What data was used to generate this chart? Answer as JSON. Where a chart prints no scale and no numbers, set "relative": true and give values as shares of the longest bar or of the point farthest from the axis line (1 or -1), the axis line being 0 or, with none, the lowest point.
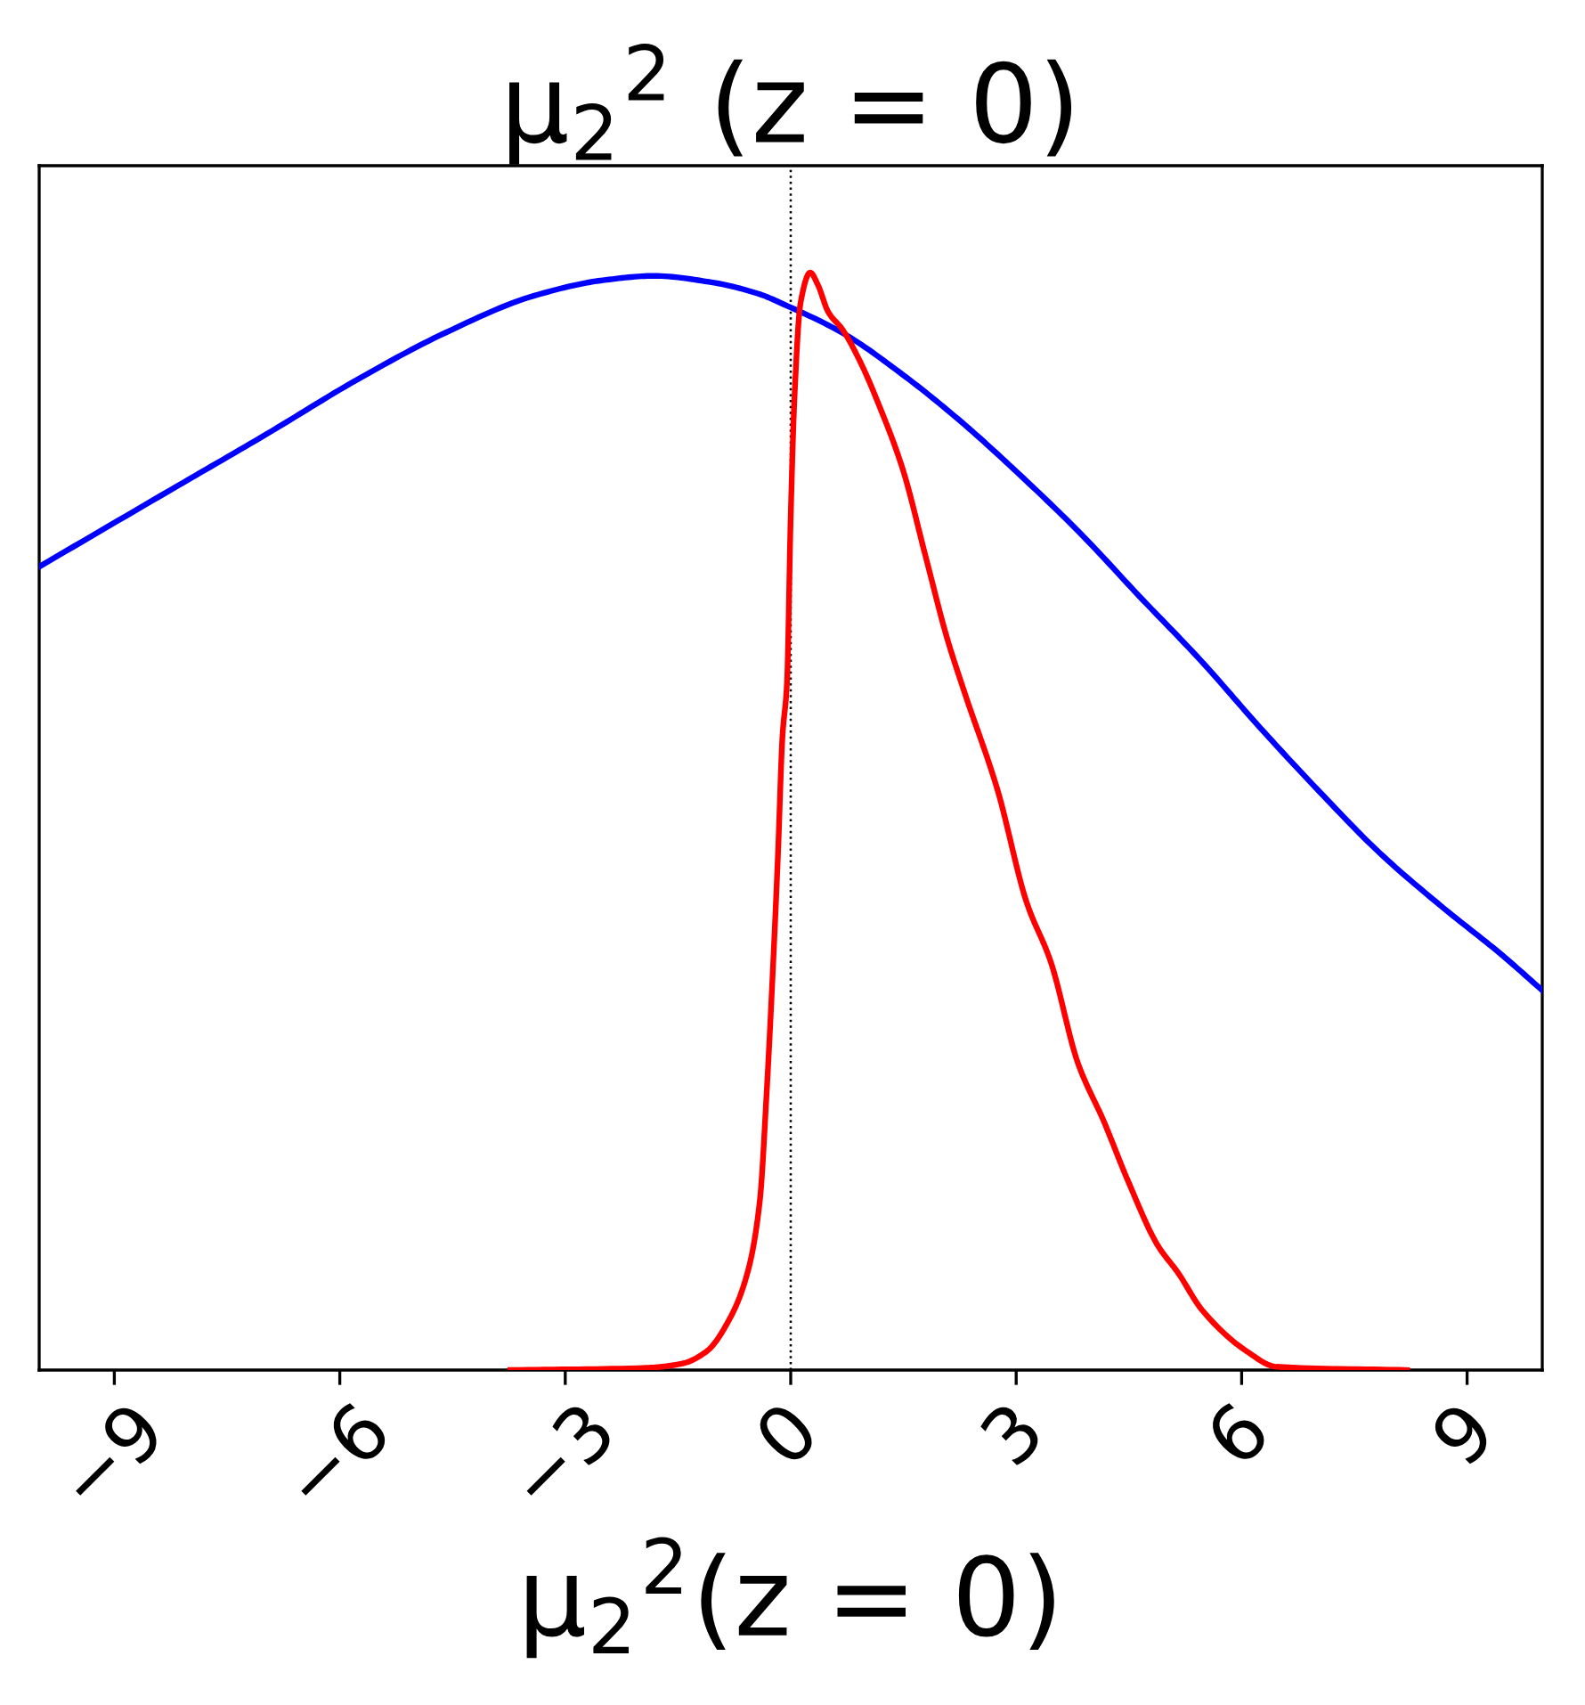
{
  "chart_data": {
    "type": "line",
    "title": "μ$_{2}$$^{2}$ (z = 0)",
    "xlabel": "μ$_{2}$$^{2}$(z = 0)",
    "relative": true,
    "tick_labels": "x",
    "marker": "none",
    "line_style": "solid",
    "xlim": [
      -10,
      10
    ],
    "xticks": [
      {
        "value": -9,
        "label": "−9"
      },
      {
        "value": -6,
        "label": "−6"
      },
      {
        "value": -3,
        "label": "−3"
      },
      0,
      3,
      6,
      9
    ],
    "ref_lines": [
      {
        "axis": "x",
        "value": 0,
        "color": "#000000",
        "line_style": "dotted"
      }
    ],
    "series": [
      {
        "color": "#0000ff",
        "x": [
          -10.0,
          -8.15,
          -6.97,
          -5.78,
          -4.6,
          -3.41,
          -2.5,
          -1.82,
          -1.04,
          -0.4,
          -0.09,
          0.69,
          1.49,
          2.27,
          3.06,
          3.86,
          4.64,
          5.45,
          6.25,
          7.05,
          7.84,
          8.65,
          9.45,
          10.0
        ],
        "values": [
          0.732,
          0.806,
          0.853,
          0.902,
          0.945,
          0.979,
          0.993,
          0.997,
          0.991,
          0.98,
          0.971,
          0.945,
          0.907,
          0.864,
          0.815,
          0.762,
          0.705,
          0.647,
          0.585,
          0.526,
          0.471,
          0.423,
          0.379,
          0.346
        ]
      },
      {
        "color": "#ff0000",
        "x": [
          -3.73,
          -1.92,
          -1.44,
          -1.12,
          -0.81,
          -0.57,
          -0.41,
          -0.32,
          -0.24,
          -0.17,
          -0.11,
          -0.05,
          0.0,
          0.05,
          0.13,
          0.26,
          0.36,
          0.5,
          0.69,
          0.93,
          1.17,
          1.49,
          1.8,
          2.08,
          2.31,
          2.75,
          3.14,
          3.46,
          3.82,
          4.17,
          4.49,
          4.88,
          5.16,
          5.47,
          6.07,
          6.46,
          8.2
        ],
        "values": [
          0.0,
          0.002,
          0.006,
          0.017,
          0.047,
          0.09,
          0.155,
          0.253,
          0.361,
          0.469,
          0.577,
          0.626,
          0.778,
          0.886,
          0.972,
          1.0,
          0.989,
          0.964,
          0.948,
          0.918,
          0.88,
          0.821,
          0.74,
          0.667,
          0.618,
          0.529,
          0.426,
          0.372,
          0.28,
          0.226,
          0.172,
          0.114,
          0.088,
          0.055,
          0.017,
          0.003,
          0.0
        ]
      }
    ]
  }
}
